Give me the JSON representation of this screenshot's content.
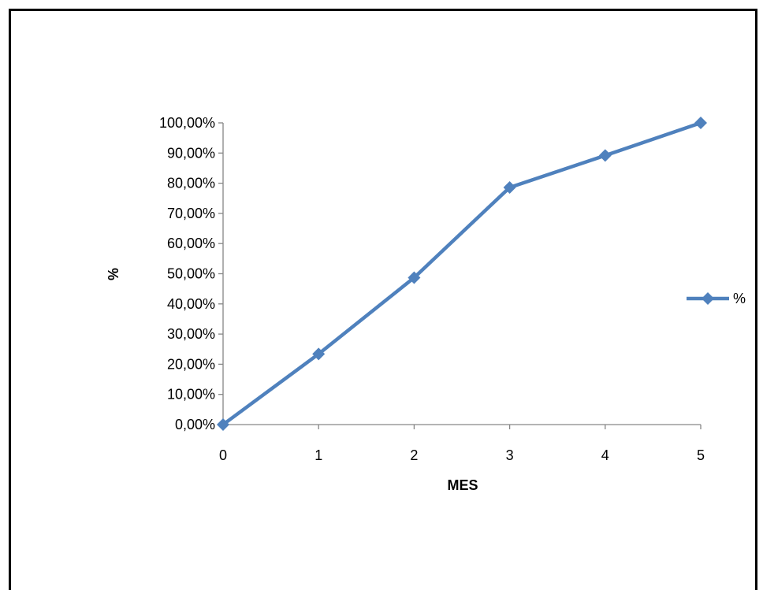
{
  "chart_data": {
    "type": "line",
    "title": "",
    "xlabel": "MES",
    "ylabel": "%",
    "x": [
      0,
      1,
      2,
      3,
      4,
      5
    ],
    "series": [
      {
        "name": "%",
        "values": [
          0.0,
          23.4,
          48.7,
          78.6,
          89.2,
          100.0
        ]
      }
    ],
    "xlim": [
      0,
      5
    ],
    "ylim": [
      0,
      100
    ],
    "yticks": [
      0,
      10,
      20,
      30,
      40,
      50,
      60,
      70,
      80,
      90,
      100
    ],
    "ytick_labels": [
      "0,00%",
      "10,00%",
      "20,00%",
      "30,00%",
      "40,00%",
      "50,00%",
      "60,00%",
      "70,00%",
      "80,00%",
      "90,00%",
      "100,00%"
    ],
    "xticks": [
      0,
      1,
      2,
      3,
      4,
      5
    ],
    "xtick_labels": [
      "0",
      "1",
      "2",
      "3",
      "4",
      "5"
    ],
    "grid": false,
    "legend_position": "right",
    "series_color": "#4F81BD",
    "marker": "diamond"
  }
}
